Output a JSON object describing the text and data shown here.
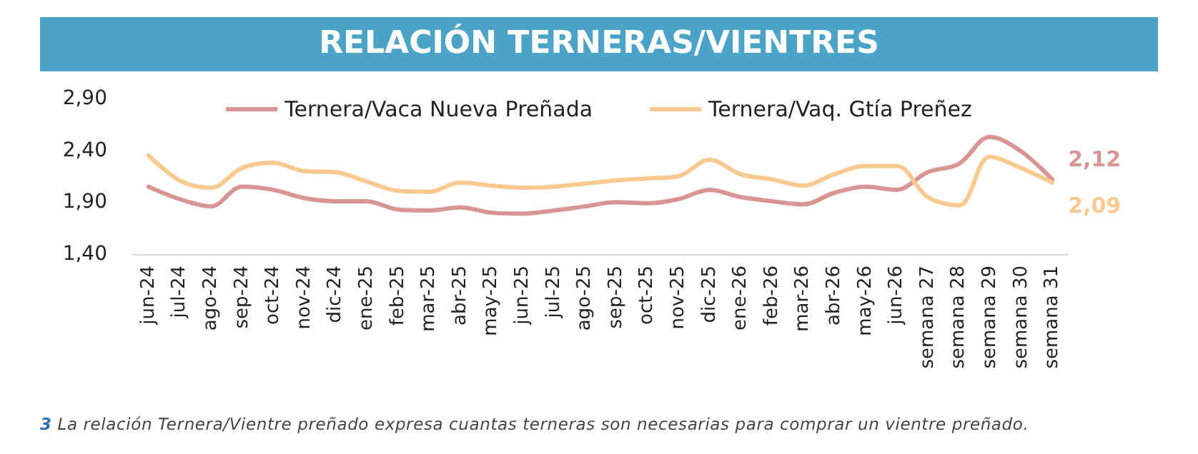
{
  "chart_data": {
    "type": "line",
    "title": "RELACIÓN TERNERAS/VIENTRES",
    "categories": [
      "jun-24",
      "jul-24",
      "ago-24",
      "sep-24",
      "oct-24",
      "nov-24",
      "dic-24",
      "ene-25",
      "feb-25",
      "mar-25",
      "abr-25",
      "may-25",
      "jun-25",
      "jul-25",
      "ago-25",
      "sep-25",
      "oct-25",
      "nov-25",
      "dic-25",
      "ene-26",
      "feb-26",
      "mar-26",
      "abr-26",
      "may-26",
      "jun-26",
      "semana 27",
      "semana 28",
      "semana 29",
      "semana 30",
      "semana 31"
    ],
    "series": [
      {
        "name": "Ternera/Vaca Nueva Preñada",
        "color": "#d99594",
        "values": [
          2.05,
          1.93,
          1.86,
          2.05,
          2.02,
          1.94,
          1.91,
          1.91,
          1.83,
          1.82,
          1.85,
          1.8,
          1.79,
          1.82,
          1.86,
          1.9,
          1.89,
          1.93,
          2.02,
          1.95,
          1.91,
          1.88,
          1.99,
          2.05,
          2.02,
          2.19,
          2.27,
          2.53,
          2.39,
          2.12
        ],
        "value_labels": [
          null,
          null,
          null,
          null,
          null,
          null,
          null,
          null,
          null,
          null,
          null,
          null,
          null,
          null,
          null,
          null,
          null,
          null,
          null,
          null,
          null,
          null,
          null,
          null,
          null,
          null,
          null,
          null,
          null,
          "2,12"
        ]
      },
      {
        "name": "Ternera/Vaq. Gtía Preñez",
        "color": "#fac98f",
        "values": [
          2.35,
          2.11,
          2.04,
          2.23,
          2.28,
          2.2,
          2.19,
          2.1,
          2.01,
          2,
          2.09,
          2.06,
          2.04,
          2.05,
          2.08,
          2.11,
          2.13,
          2.15,
          2.31,
          2.17,
          2.12,
          2.06,
          2.17,
          2.25,
          2.25,
          1.95,
          1.87,
          2.34,
          2.23,
          2.09
        ],
        "value_labels": [
          null,
          null,
          null,
          null,
          null,
          null,
          null,
          null,
          null,
          null,
          null,
          null,
          null,
          null,
          null,
          null,
          null,
          null,
          null,
          null,
          null,
          null,
          null,
          null,
          null,
          null,
          null,
          null,
          null,
          "2,09"
        ]
      }
    ],
    "ylim": [
      1.4,
      2.9
    ],
    "yticks": [
      {
        "value": 1.4,
        "label": "1,40"
      },
      {
        "value": 1.9,
        "label": "1,90"
      },
      {
        "value": 2.4,
        "label": "2,40"
      },
      {
        "value": 2.9,
        "label": "2,90"
      }
    ],
    "grid": false,
    "legend": "top",
    "marker": "none",
    "line_style": "solid",
    "annotations": [
      "3 La relación Ternera/Vientre preñado expresa cuantas terneras son necesarias para comprar un vientre preñado."
    ]
  }
}
